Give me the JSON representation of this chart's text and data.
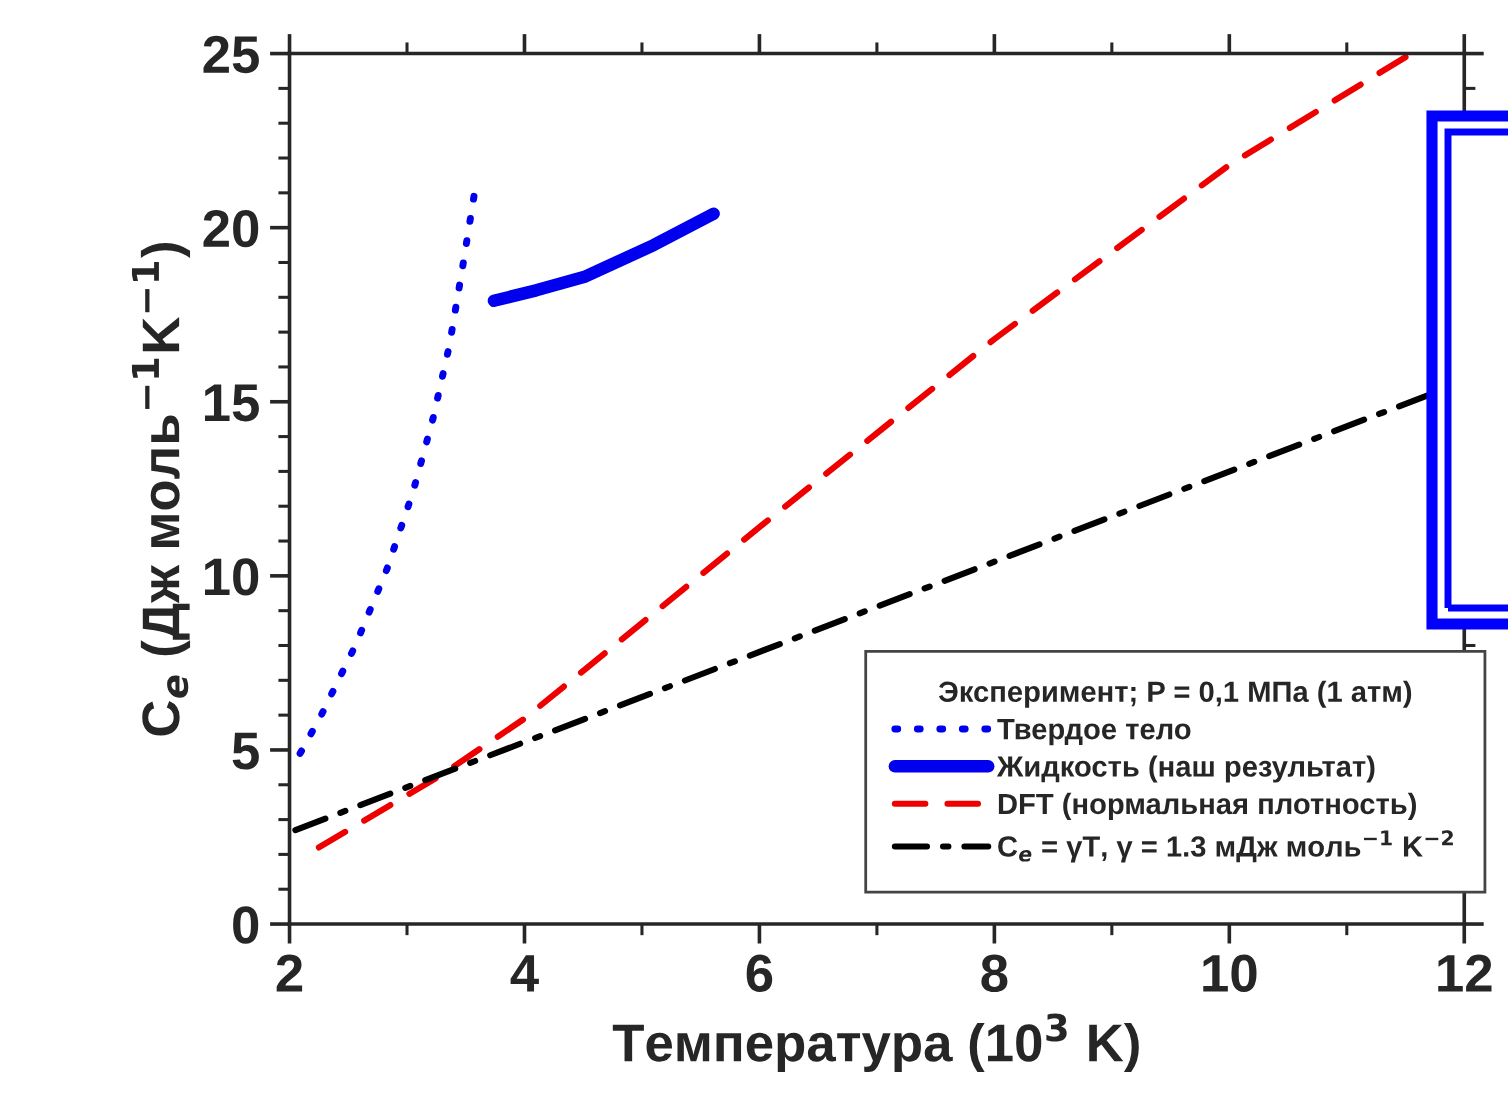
{
  "chart_data": {
    "type": "line",
    "xlabel": "Температура (10$^{3}$ K)",
    "ylabel": "C$_{e}$ (Дж моль$^{−1}$K$^{−1}$)",
    "legend_title": "Эксперимент; P = 0,1 МПа (1 атм)",
    "xlim": [
      2,
      12
    ],
    "ylim": [
      0,
      25
    ],
    "xticks": [
      2,
      4,
      6,
      8,
      10,
      12
    ],
    "yticks": [
      0,
      5,
      10,
      15,
      20,
      25
    ],
    "grid": false,
    "legend": "bottom right",
    "series": [
      {
        "name": "Твердое тело",
        "color": "#0000ee",
        "line_style": "dotted",
        "x": [
          2.09,
          2.27,
          2.56,
          2.83,
          3.05,
          3.22,
          3.36,
          3.47,
          3.57
        ],
        "values": [
          4.9,
          6.0,
          8.0,
          10.2,
          12.4,
          14.5,
          16.6,
          18.8,
          20.9
        ]
      },
      {
        "name": "Жидкость (наш результат)",
        "color": "#0000ee",
        "line_style": "solid",
        "x": [
          3.74,
          4.1,
          4.52,
          5.1,
          5.61
        ],
        "values": [
          17.9,
          18.2,
          18.6,
          19.5,
          20.4
        ]
      },
      {
        "name": "DFT (нормальная плотность)",
        "color": "#ee0000",
        "line_style": "dashed",
        "x": [
          2.25,
          3.3,
          4,
          6,
          8,
          10,
          11.5
        ],
        "values": [
          2.2,
          4.3,
          5.9,
          11.4,
          16.8,
          21.8,
          24.9
        ]
      },
      {
        "name": "C$_{e}$ = γT, γ = 1.3 мДж моль$^{−1}$ K$^{−2}$",
        "color": "#000000",
        "line_style": "dashdot",
        "x": [
          2.05,
          11.7
        ],
        "values": [
          2.7,
          15.2
        ]
      }
    ]
  }
}
